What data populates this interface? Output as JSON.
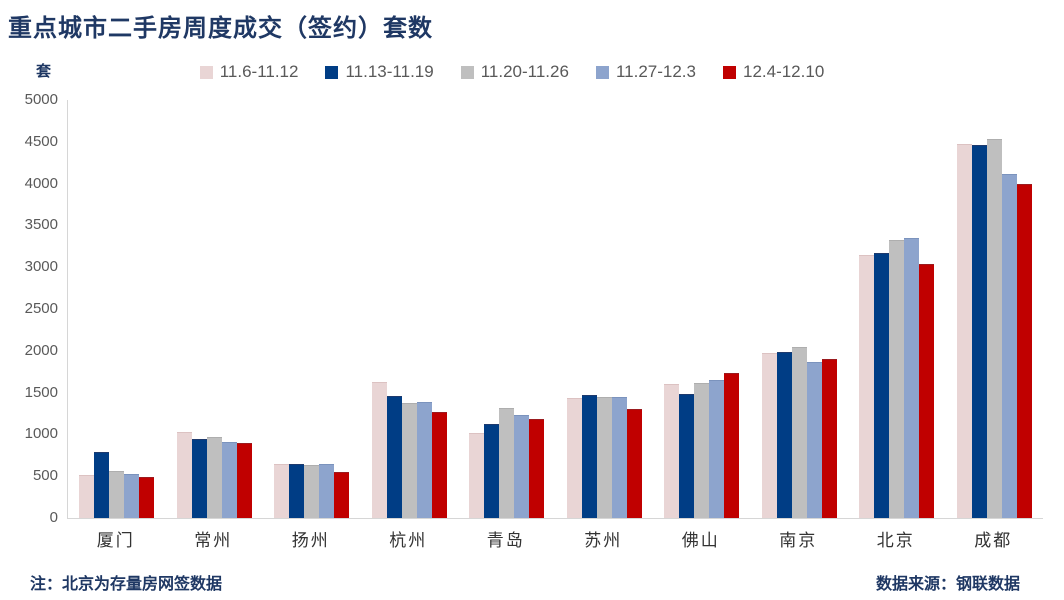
{
  "page": {
    "title": "重点城市二手房周度成交（签约）套数",
    "unit_label": "套",
    "note_left": "注：北京为存量房网签数据",
    "note_right": "数据来源：钢联数据"
  },
  "colors": {
    "title_text": "#1f3864",
    "axis_text": "#595959",
    "axis_line": "#d6d6d6",
    "legend_text": "#595959"
  },
  "chart_data": {
    "type": "bar",
    "title": "重点城市二手房周度成交（签约）套数",
    "xlabel": "",
    "ylabel": "套",
    "ylim": [
      0,
      5000
    ],
    "y_ticks": [
      0,
      500,
      1000,
      1500,
      2000,
      2500,
      3000,
      3500,
      4000,
      4500,
      5000
    ],
    "grid": false,
    "legend_position": "top",
    "categories": [
      "厦门",
      "常州",
      "扬州",
      "杭州",
      "青岛",
      "苏州",
      "佛山",
      "南京",
      "北京",
      "成都"
    ],
    "series": [
      {
        "name": "11.6-11.12",
        "color": "#e9d5d5",
        "edge": "#dcc2c2",
        "values": [
          510,
          1030,
          645,
          1630,
          1020,
          1430,
          1600,
          1970,
          3145,
          4470
        ]
      },
      {
        "name": "11.13-11.19",
        "color": "#003d85",
        "edge": "#1e3a6d",
        "values": [
          795,
          940,
          650,
          1455,
          1120,
          1470,
          1480,
          1990,
          3165,
          4465
        ]
      },
      {
        "name": "11.20-11.26",
        "color": "#bfbfbf",
        "edge": "#aeaeae",
        "values": [
          565,
          970,
          640,
          1380,
          1320,
          1450,
          1610,
          2045,
          3320,
          4530
        ]
      },
      {
        "name": "11.27-12.3",
        "color": "#8da4cd",
        "edge": "#7b93bd",
        "values": [
          525,
          915,
          645,
          1390,
          1230,
          1450,
          1650,
          1870,
          3355,
          4115
        ]
      },
      {
        "name": "12.4-12.10",
        "color": "#c00000",
        "edge": "#9b1b1f",
        "values": [
          490,
          900,
          555,
          1270,
          1180,
          1305,
          1730,
          1905,
          3035,
          4000
        ]
      }
    ]
  }
}
